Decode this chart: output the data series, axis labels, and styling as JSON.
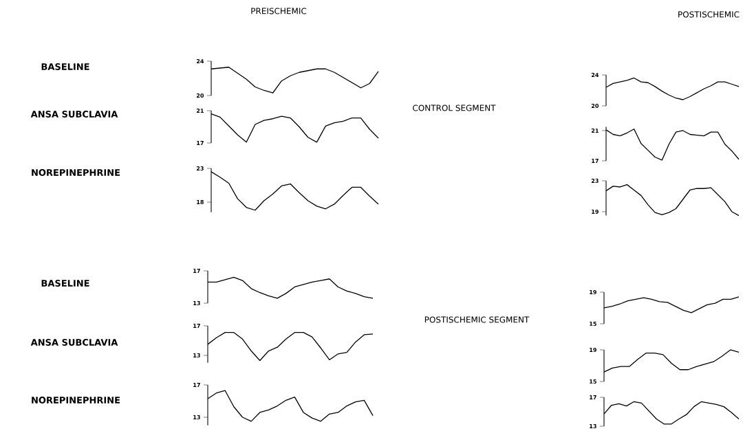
{
  "chart_data": [
    {
      "type": "line",
      "title": "PREISCHEMIC",
      "ylabel": "BASELINE",
      "color": "#000000",
      "tick_labels": "y",
      "categories": [
        null,
        null,
        null,
        null,
        null,
        null,
        null,
        null,
        null,
        null,
        null,
        null,
        null,
        null,
        null,
        null,
        null,
        null,
        null,
        null
      ],
      "values": [
        23.1,
        23.2,
        23.3,
        22.6,
        21.9,
        21.0,
        20.6,
        20.3,
        21.7,
        22.3,
        22.7,
        22.9,
        23.1,
        23.1,
        22.7,
        22.1,
        21.5,
        20.9,
        21.4,
        22.8
      ],
      "ylim": [
        20,
        24
      ],
      "yticks": [
        20,
        24
      ]
    },
    {
      "type": "line",
      "ylabel": "ANSA SUBCLAVIA",
      "color": "#000000",
      "tick_labels": "y",
      "categories": [
        null,
        null,
        null,
        null,
        null,
        null,
        null,
        null,
        null,
        null,
        null,
        null,
        null,
        null,
        null,
        null,
        null,
        null,
        null,
        null
      ],
      "values": [
        20.6,
        20.2,
        19.1,
        18.0,
        17.1,
        19.3,
        19.8,
        20.0,
        20.3,
        20.1,
        19.0,
        17.7,
        17.1,
        19.1,
        19.5,
        19.7,
        20.1,
        20.1,
        18.7,
        17.6
      ],
      "ylim": [
        17,
        21
      ],
      "yticks": [
        17,
        21
      ]
    },
    {
      "type": "line",
      "ylabel": "NOREPINEPHRINE",
      "color": "#000000",
      "tick_labels": "y",
      "categories": [
        null,
        null,
        null,
        null,
        null,
        null,
        null,
        null,
        null,
        null,
        null,
        null,
        null,
        null,
        null,
        null,
        null,
        null,
        null,
        null
      ],
      "values": [
        22.5,
        21.7,
        20.8,
        18.5,
        17.2,
        16.8,
        18.2,
        19.2,
        20.4,
        20.7,
        19.4,
        18.2,
        17.4,
        17.0,
        17.7,
        19.0,
        20.2,
        20.2,
        18.9,
        17.7
      ],
      "ylim": [
        16.5,
        23
      ],
      "yticks": [
        18,
        23
      ]
    },
    {
      "type": "line",
      "title": "POSTISCHEMIC",
      "annotations": [
        "CONTROL SEGMENT"
      ],
      "color": "#000000",
      "tick_labels": "y",
      "categories": [
        null,
        null,
        null,
        null,
        null,
        null,
        null,
        null,
        null,
        null,
        null,
        null,
        null,
        null,
        null,
        null,
        null,
        null,
        null,
        null
      ],
      "values": [
        22.4,
        22.9,
        23.1,
        23.3,
        23.6,
        23.1,
        23.0,
        22.5,
        21.9,
        21.4,
        21.0,
        20.8,
        21.2,
        21.7,
        22.2,
        22.6,
        23.1,
        23.1,
        22.8,
        22.5
      ],
      "ylim": [
        20,
        24
      ],
      "yticks": [
        20,
        24
      ]
    },
    {
      "type": "line",
      "color": "#000000",
      "tick_labels": "y",
      "categories": [
        null,
        null,
        null,
        null,
        null,
        null,
        null,
        null,
        null,
        null,
        null,
        null,
        null,
        null,
        null,
        null,
        null,
        null,
        null,
        null
      ],
      "values": [
        21.1,
        20.5,
        20.3,
        20.7,
        21.2,
        19.3,
        18.4,
        17.5,
        17.1,
        19.2,
        20.8,
        21.0,
        20.5,
        20.4,
        20.3,
        20.8,
        20.8,
        19.2,
        18.3,
        17.2
      ],
      "ylim": [
        17,
        21.5
      ],
      "yticks": [
        17,
        21
      ]
    },
    {
      "type": "line",
      "color": "#000000",
      "tick_labels": "y",
      "categories": [
        null,
        null,
        null,
        null,
        null,
        null,
        null,
        null,
        null,
        null,
        null,
        null,
        null,
        null,
        null,
        null,
        null,
        null,
        null,
        null
      ],
      "values": [
        21.7,
        22.3,
        22.2,
        22.5,
        21.8,
        21.1,
        19.9,
        18.9,
        18.6,
        18.9,
        19.4,
        20.6,
        21.8,
        22.0,
        22.0,
        22.1,
        21.2,
        20.3,
        19.0,
        18.5
      ],
      "ylim": [
        18.5,
        23
      ],
      "yticks": [
        19,
        23
      ]
    },
    {
      "type": "line",
      "ylabel": "BASELINE",
      "color": "#000000",
      "tick_labels": "y",
      "categories": [
        null,
        null,
        null,
        null,
        null,
        null,
        null,
        null,
        null,
        null,
        null,
        null,
        null,
        null,
        null,
        null,
        null,
        null,
        null,
        null
      ],
      "values": [
        15.6,
        15.6,
        15.9,
        16.2,
        15.8,
        14.8,
        14.3,
        13.9,
        13.6,
        14.2,
        15.0,
        15.3,
        15.6,
        15.8,
        16.0,
        15.0,
        14.5,
        14.2,
        13.8,
        13.6
      ],
      "ylim": [
        13,
        17
      ],
      "yticks": [
        13,
        17
      ]
    },
    {
      "type": "line",
      "ylabel": "ANSA SUBCLAVIA",
      "color": "#000000",
      "tick_labels": "y",
      "categories": [
        null,
        null,
        null,
        null,
        null,
        null,
        null,
        null,
        null,
        null,
        null,
        null,
        null,
        null,
        null,
        null,
        null,
        null,
        null,
        null
      ],
      "values": [
        14.5,
        15.4,
        16.1,
        16.1,
        15.2,
        13.6,
        12.3,
        13.6,
        14.1,
        15.2,
        16.1,
        16.1,
        15.5,
        14.0,
        12.4,
        13.2,
        13.4,
        14.8,
        15.8,
        15.9
      ],
      "ylim": [
        12,
        17
      ],
      "yticks": [
        13,
        17
      ]
    },
    {
      "type": "line",
      "ylabel": "NOREPINEPHRINE",
      "color": "#000000",
      "tick_labels": "y",
      "categories": [
        null,
        null,
        null,
        null,
        null,
        null,
        null,
        null,
        null,
        null,
        null,
        null,
        null,
        null,
        null,
        null,
        null,
        null,
        null,
        null
      ],
      "values": [
        15.3,
        16.0,
        16.3,
        14.3,
        13.0,
        12.5,
        13.6,
        13.9,
        14.4,
        15.1,
        15.5,
        13.6,
        12.9,
        12.5,
        13.4,
        13.6,
        14.4,
        14.9,
        15.1,
        13.2
      ],
      "ylim": [
        12,
        17
      ],
      "yticks": [
        13,
        17
      ]
    },
    {
      "type": "line",
      "annotations": [
        "POSTISCHEMIC SEGMENT"
      ],
      "color": "#000000",
      "tick_labels": "y",
      "categories": [
        null,
        null,
        null,
        null,
        null,
        null,
        null,
        null,
        null,
        null,
        null,
        null,
        null,
        null,
        null,
        null,
        null,
        null
      ],
      "values": [
        17.0,
        17.2,
        17.5,
        17.9,
        18.1,
        18.3,
        18.1,
        17.8,
        17.7,
        17.2,
        16.7,
        16.4,
        16.9,
        17.4,
        17.6,
        18.1,
        18.1,
        18.4
      ],
      "ylim": [
        15,
        19
      ],
      "yticks": [
        15,
        19
      ]
    },
    {
      "type": "line",
      "color": "#000000",
      "tick_labels": "y",
      "categories": [
        null,
        null,
        null,
        null,
        null,
        null,
        null,
        null,
        null,
        null,
        null,
        null,
        null,
        null,
        null,
        null,
        null
      ],
      "values": [
        16.2,
        16.7,
        16.9,
        16.9,
        17.8,
        18.6,
        18.6,
        18.4,
        17.3,
        16.5,
        16.5,
        16.9,
        17.2,
        17.5,
        18.2,
        19.0,
        18.7
      ],
      "ylim": [
        15,
        19
      ],
      "yticks": [
        15,
        19
      ]
    },
    {
      "type": "line",
      "color": "#000000",
      "tick_labels": "y",
      "categories": [
        null,
        null,
        null,
        null,
        null,
        null,
        null,
        null,
        null,
        null,
        null,
        null,
        null,
        null,
        null,
        null,
        null,
        null,
        null
      ],
      "values": [
        14.7,
        15.9,
        16.1,
        15.8,
        16.4,
        16.2,
        15.1,
        14.0,
        13.3,
        13.3,
        14.0,
        14.6,
        15.7,
        16.4,
        16.2,
        16.0,
        15.7,
        14.9,
        14.0
      ],
      "ylim": [
        13,
        17
      ],
      "yticks": [
        13,
        17
      ]
    }
  ]
}
